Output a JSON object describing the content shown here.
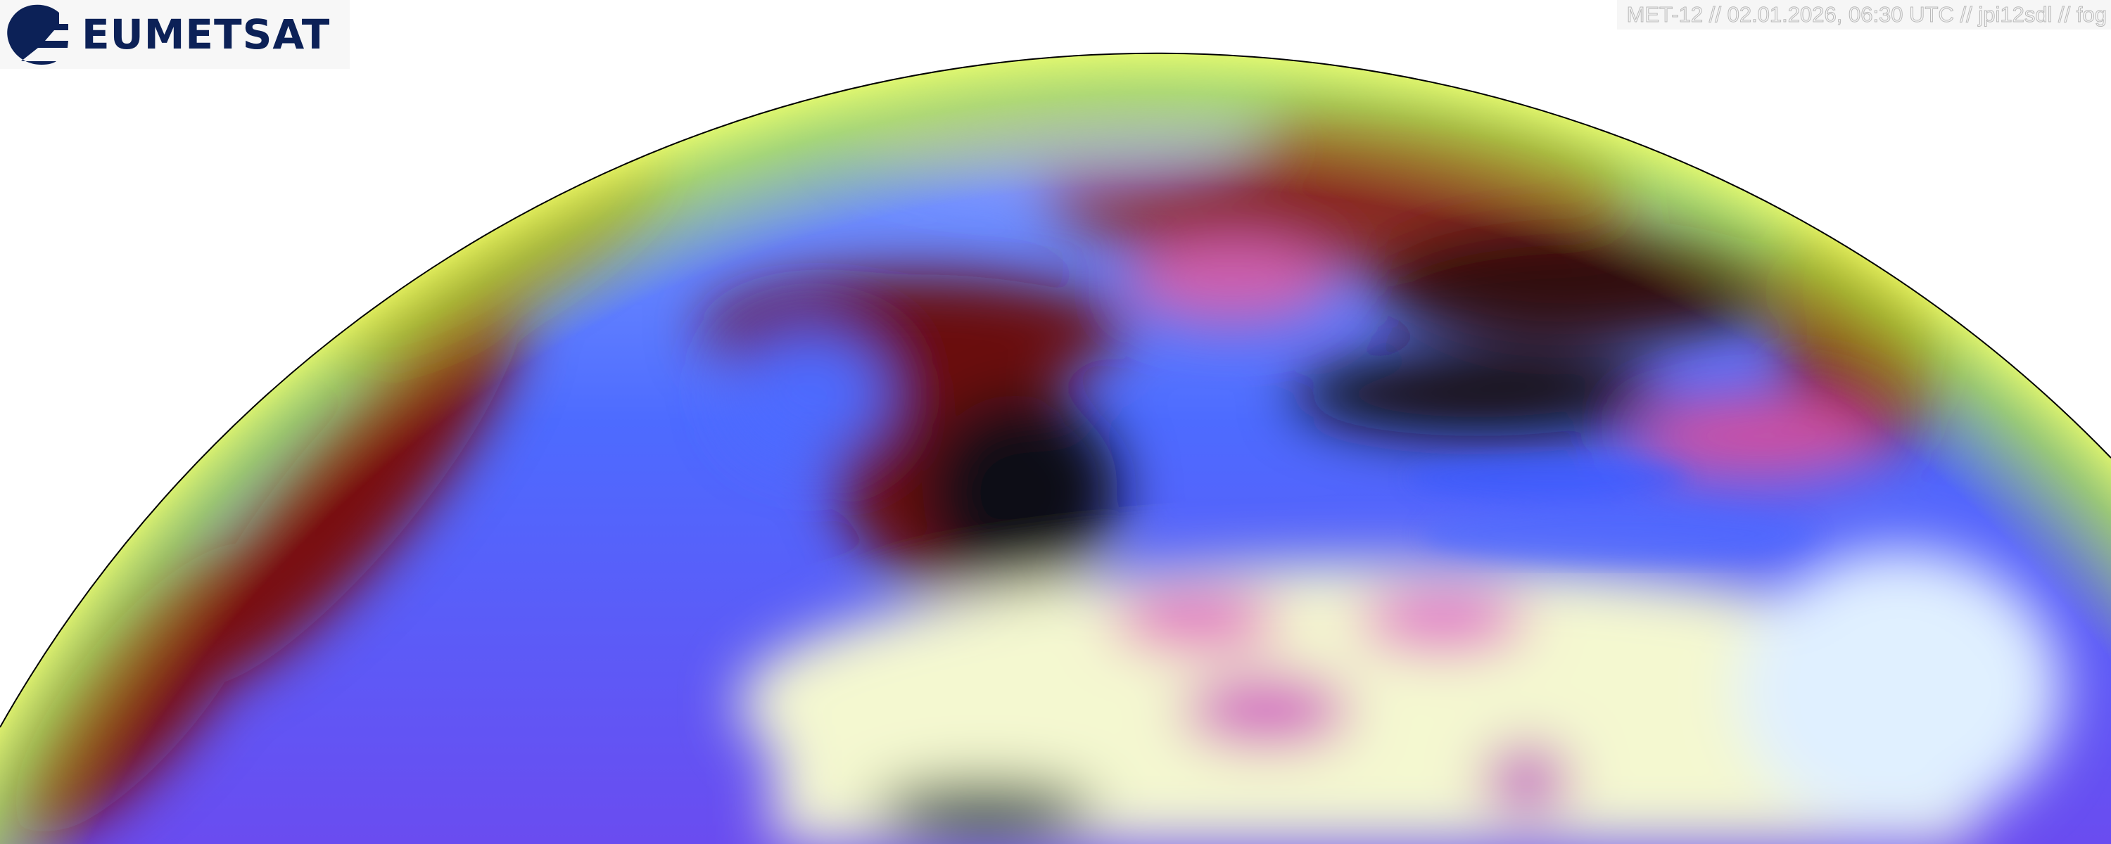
{
  "logo": {
    "text": "EUMETSAT",
    "color": "#0c2157"
  },
  "caption": {
    "text": "MET-12 // 02.01.2026, 06:30 UTC // jpi12sdl // fog"
  },
  "imagery": {
    "colors": {
      "ocean": "#4d6bff",
      "cloud_dark": "#7a0c08",
      "desert": "#f4f8d0",
      "magenta": "#e040c0",
      "limb": "#b8f040",
      "night": "#050510"
    }
  }
}
